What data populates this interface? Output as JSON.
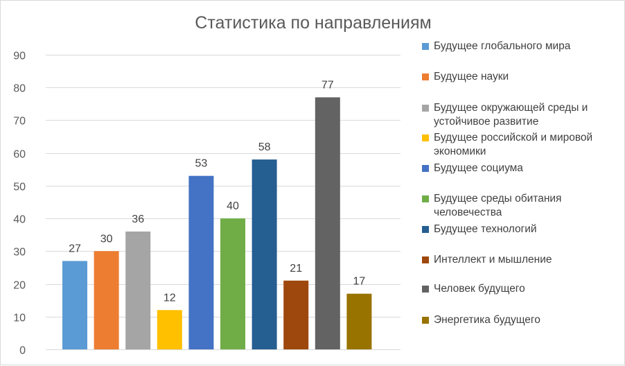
{
  "chart_data": {
    "type": "bar",
    "title": "Статистика по направлениям",
    "ylim": [
      0,
      90
    ],
    "yticks": [
      0,
      10,
      20,
      30,
      40,
      50,
      60,
      70,
      80,
      90
    ],
    "grid": true,
    "legend_position": "right",
    "categories": [
      "Будущее глобального мира",
      "Будущее науки",
      "Будущее окружающей среды и устойчивое развитие",
      "Будущее российской и мировой экономики",
      "Будущее социума",
      "Будущее среды обитания человечества",
      "Будущее технологий",
      "Интеллект и мышление",
      "Человек будущего",
      "Энергетика будущего"
    ],
    "values": [
      27,
      30,
      36,
      12,
      53,
      40,
      58,
      21,
      77,
      17
    ],
    "colors": [
      "#5b9bd5",
      "#ed7d31",
      "#a5a5a5",
      "#ffc000",
      "#4472c4",
      "#70ad47",
      "#255e91",
      "#9e480e",
      "#636363",
      "#997300"
    ]
  },
  "legend": {
    "items": [
      {
        "label": "Будущее глобального мира",
        "color": "#5b9bd5"
      },
      {
        "label": "Будущее науки",
        "color": "#ed7d31"
      },
      {
        "label": "Будущее окружающей среды и устойчивое развитие",
        "color": "#a5a5a5"
      },
      {
        "label": "Будущее российской и мировой экономики",
        "color": "#ffc000"
      },
      {
        "label": "Будущее социума",
        "color": "#4472c4"
      },
      {
        "label": "Будущее среды обитания человечества",
        "color": "#70ad47"
      },
      {
        "label": "Будущее технологий",
        "color": "#255e91"
      },
      {
        "label": "Интеллект и мышление",
        "color": "#9e480e"
      },
      {
        "label": "Человек будущего",
        "color": "#636363"
      },
      {
        "label": "Энергетика будущего",
        "color": "#997300"
      }
    ]
  }
}
